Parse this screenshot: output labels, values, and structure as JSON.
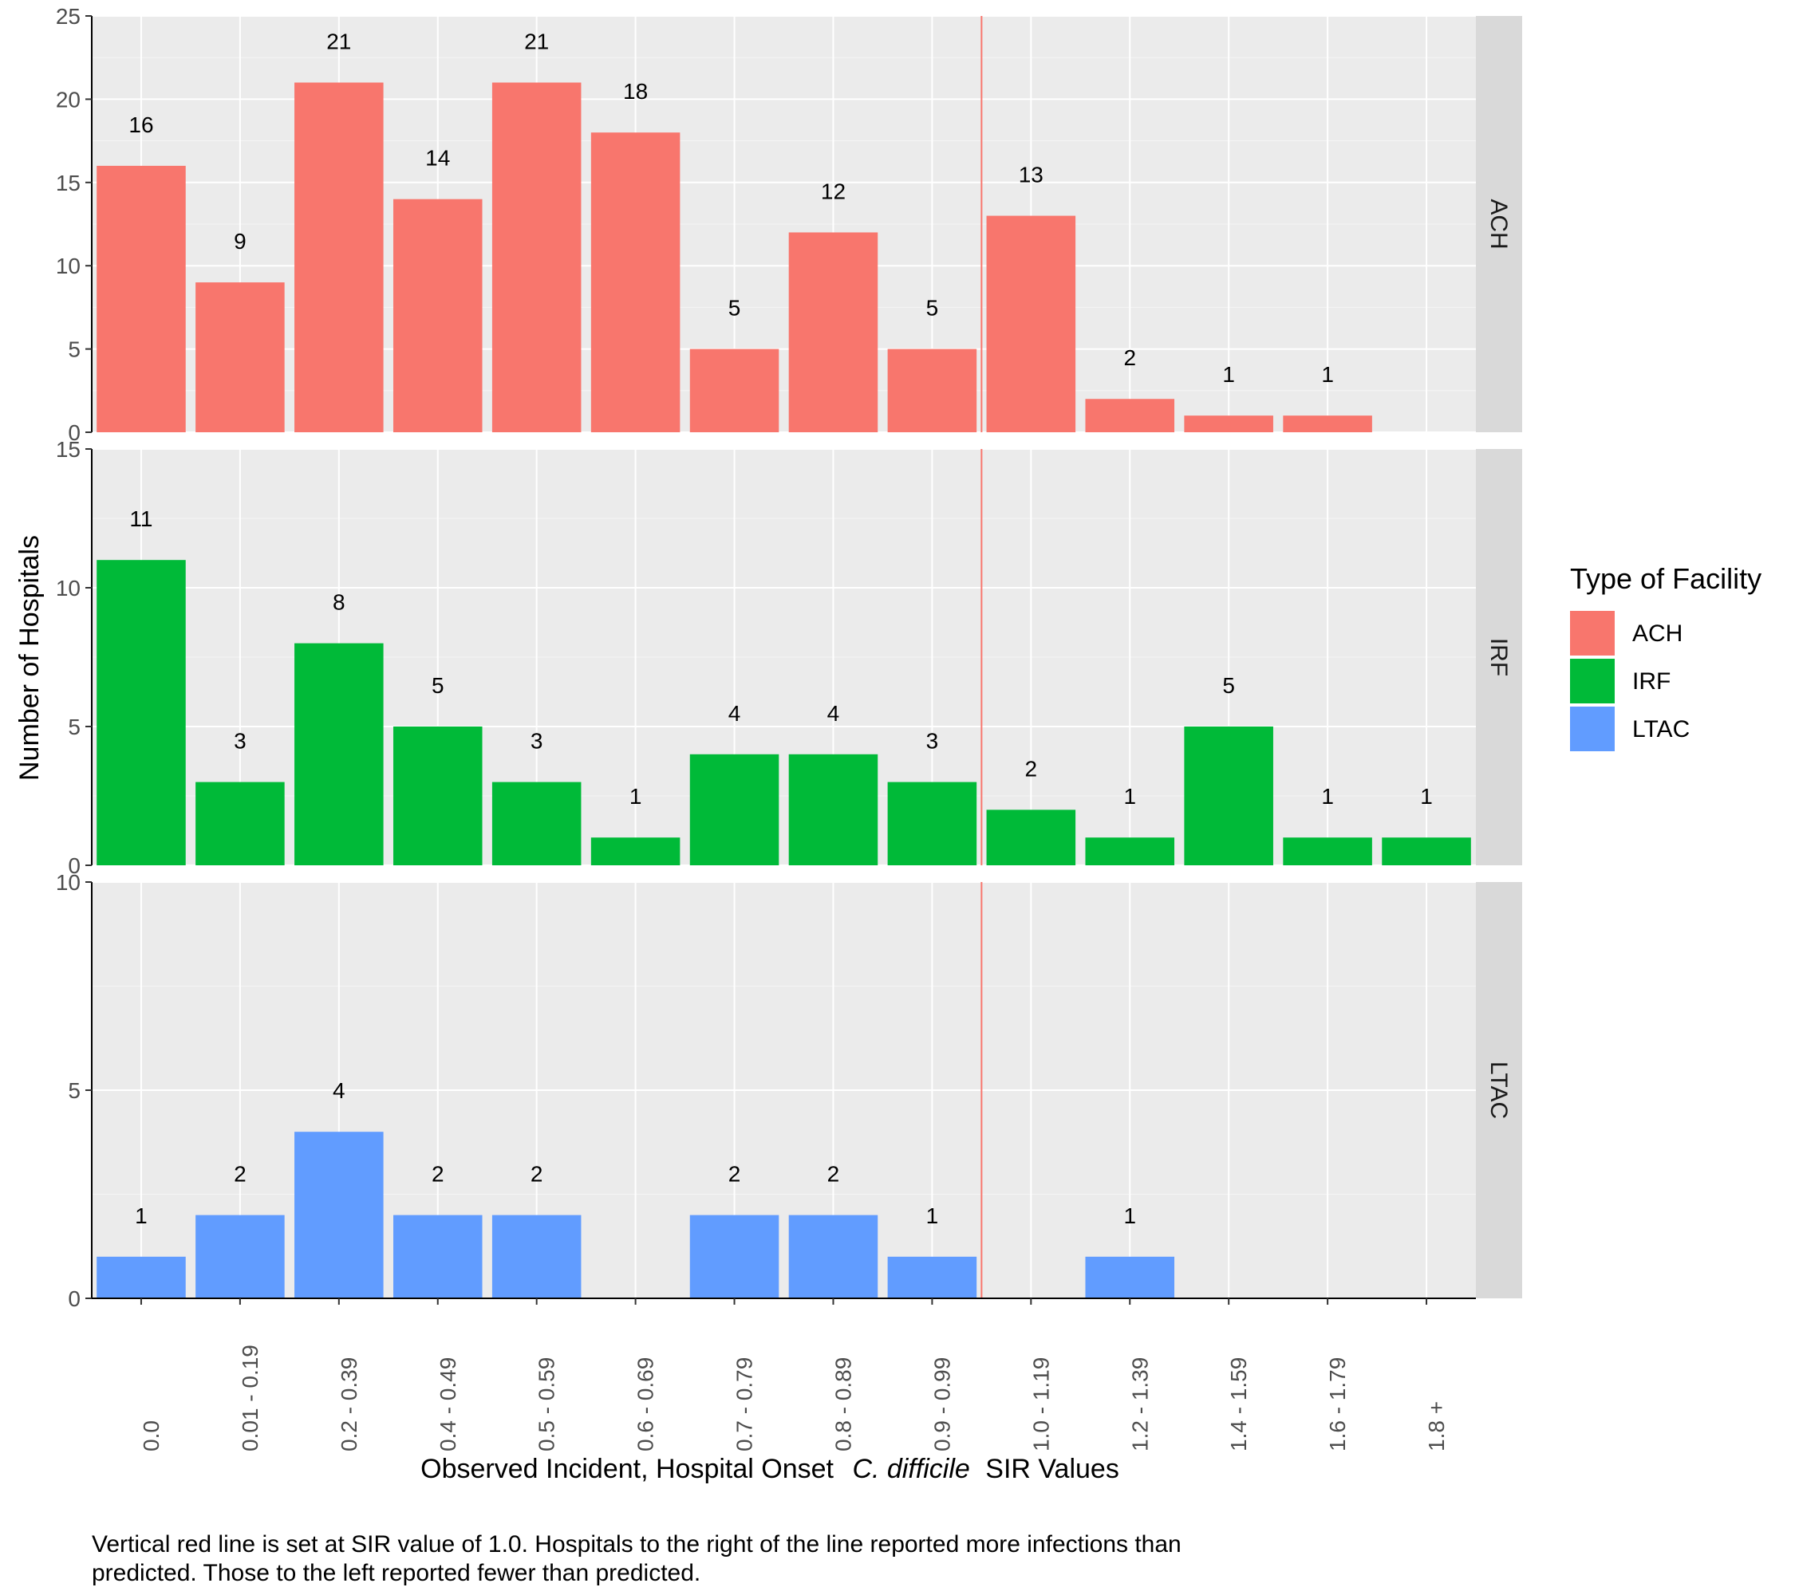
{
  "chart_data": {
    "type": "bar",
    "categories": [
      "0.0",
      "0.01 - 0.19",
      "0.2 - 0.39",
      "0.4 - 0.49",
      "0.5 - 0.59",
      "0.6 - 0.69",
      "0.7 - 0.79",
      "0.8 - 0.89",
      "0.9 - 0.99",
      "1.0 - 1.19",
      "1.2 - 1.39",
      "1.4 - 1.59",
      "1.6 - 1.79",
      "1.8 +"
    ],
    "series": [
      {
        "name": "ACH",
        "color": "#F8766D",
        "values": [
          16,
          9,
          21,
          14,
          21,
          18,
          5,
          12,
          5,
          13,
          2,
          1,
          1,
          null
        ],
        "ylim": [
          0,
          25
        ],
        "yticks": [
          0,
          5,
          10,
          15,
          20,
          25
        ]
      },
      {
        "name": "IRF",
        "color": "#00BA38",
        "values": [
          11,
          3,
          8,
          5,
          3,
          1,
          4,
          4,
          3,
          2,
          1,
          5,
          1,
          1
        ],
        "ylim": [
          0,
          15
        ],
        "yticks": [
          0,
          5,
          10,
          15
        ]
      },
      {
        "name": "LTAC",
        "color": "#619CFF",
        "values": [
          1,
          2,
          4,
          2,
          2,
          null,
          2,
          2,
          1,
          null,
          1,
          null,
          null,
          null
        ],
        "ylim": [
          0,
          10
        ],
        "yticks": [
          0,
          5,
          10
        ]
      }
    ],
    "reference_line": {
      "position_between": [
        "0.9 - 0.99",
        "1.0 - 1.19"
      ],
      "color": "#F8766D"
    },
    "xlabel_prefix": "Observed Incident, Hospital Onset",
    "xlabel_italic": "C. difficile",
    "xlabel_suffix": "SIR Values",
    "ylabel": "Number of Hospitals",
    "legend_title": "Type of Facility",
    "legend_position": "right",
    "caption_line1": "Vertical red line is set at SIR value of 1.0.  Hospitals to the right of the line reported more infections than",
    "caption_line2": "predicted. Those to the left reported fewer than predicted."
  }
}
